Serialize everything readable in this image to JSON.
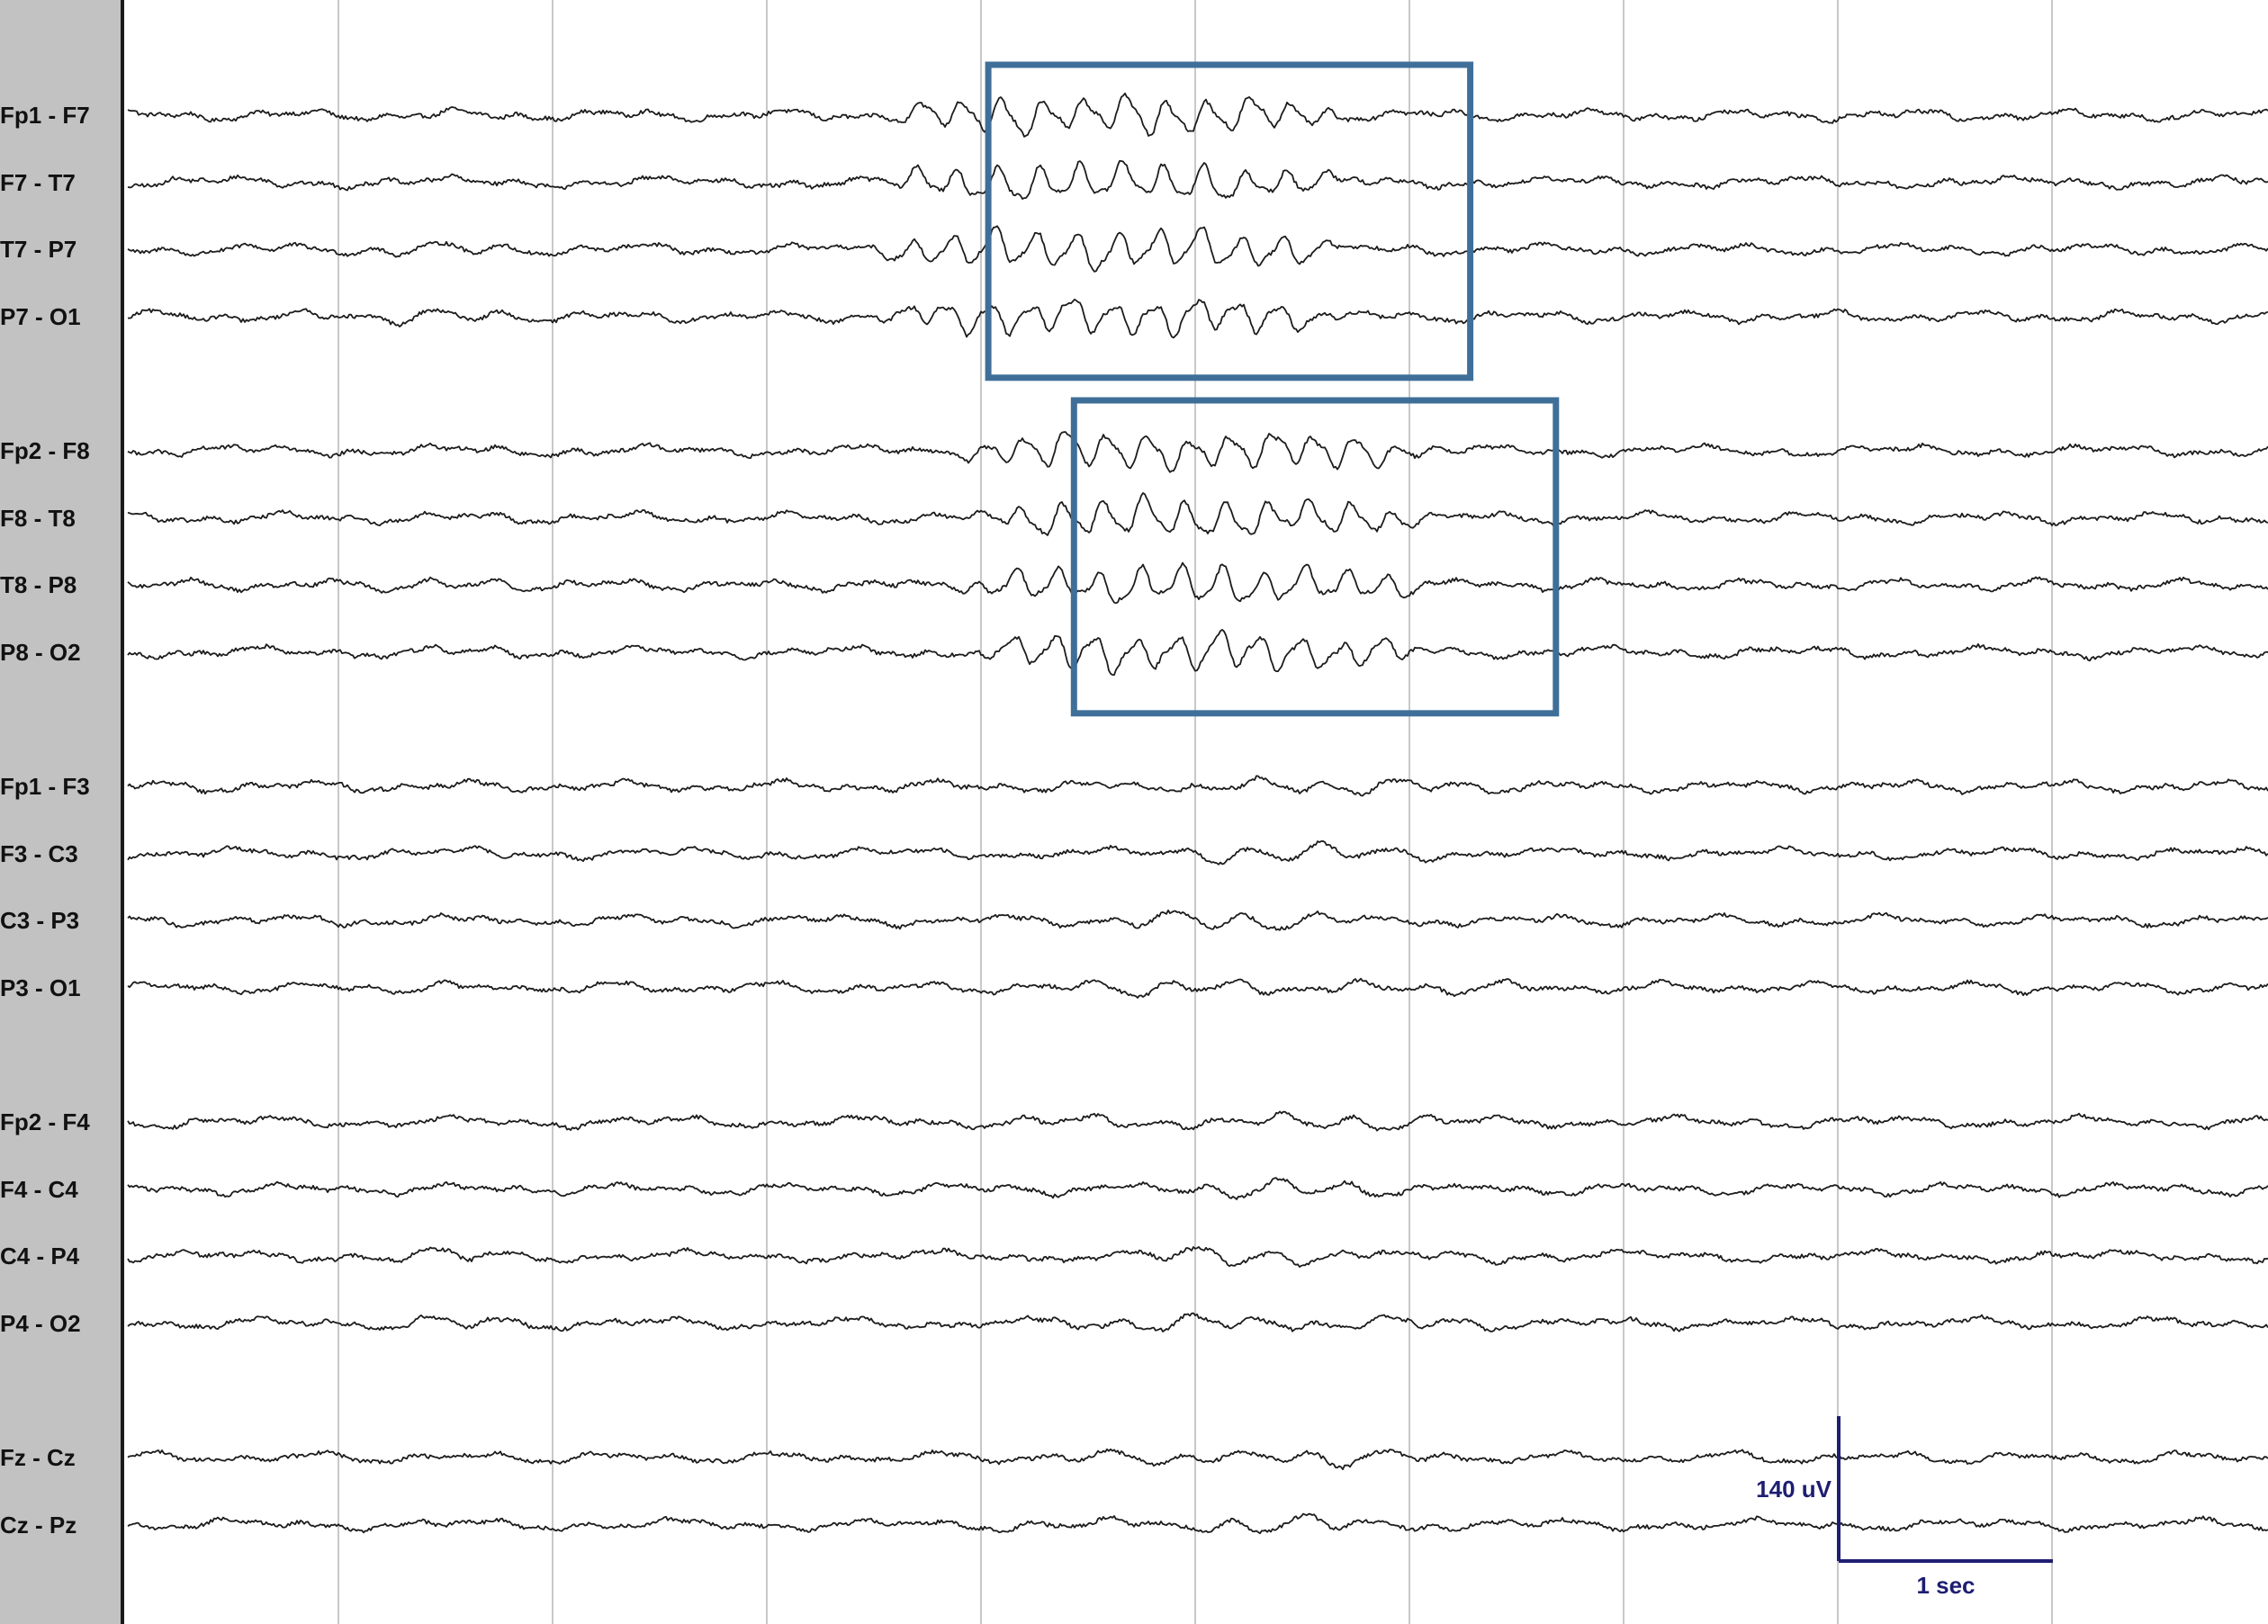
{
  "montage": {
    "channels": [
      {
        "label": "Fp1 - F7",
        "group": 0
      },
      {
        "label": "F7 - T7",
        "group": 0
      },
      {
        "label": "T7 - P7",
        "group": 0
      },
      {
        "label": "P7 - O1",
        "group": 0
      },
      {
        "label": "Fp2 - F8",
        "group": 1
      },
      {
        "label": "F8 - T8",
        "group": 1
      },
      {
        "label": "T8 - P8",
        "group": 1
      },
      {
        "label": "P8 - O2",
        "group": 1
      },
      {
        "label": "Fp1 - F3",
        "group": 2
      },
      {
        "label": "F3 - C3",
        "group": 2
      },
      {
        "label": "C3 - P3",
        "group": 2
      },
      {
        "label": "P3 - O1",
        "group": 2
      },
      {
        "label": "Fp2 - F4",
        "group": 3
      },
      {
        "label": "F4 - C4",
        "group": 3
      },
      {
        "label": "C4 - P4",
        "group": 3
      },
      {
        "label": "P4 - O2",
        "group": 3
      },
      {
        "label": "Fz - Cz",
        "group": 4
      },
      {
        "label": "Cz - Pz",
        "group": 4
      }
    ]
  },
  "timebase": {
    "seconds_visible": 10,
    "gridline_interval_sec": 1
  },
  "annotations": [
    {
      "name": "left-hemisphere-discharge-box",
      "channels": [
        "Fp1 - F7",
        "F7 - T7",
        "T7 - P7",
        "P7 - O1"
      ],
      "start_sec": 3.45,
      "end_sec": 5.7
    },
    {
      "name": "right-hemisphere-discharge-box",
      "channels": [
        "Fp2 - F8",
        "F8 - T8",
        "T8 - P8",
        "P8 - O2"
      ],
      "start_sec": 3.85,
      "end_sec": 6.1
    }
  ],
  "scale_bar": {
    "amplitude_label": "140 uV",
    "time_label": "1 sec",
    "amplitude_uv": 140,
    "time_sec": 1
  },
  "colors": {
    "background": "#ffffff",
    "label_panel": "#c2c2c2",
    "trace": "#1c1c1c",
    "gridline": "#c8c8c8",
    "annotation_box": "#3f6f99",
    "scale_bar": "#1e1e72"
  }
}
